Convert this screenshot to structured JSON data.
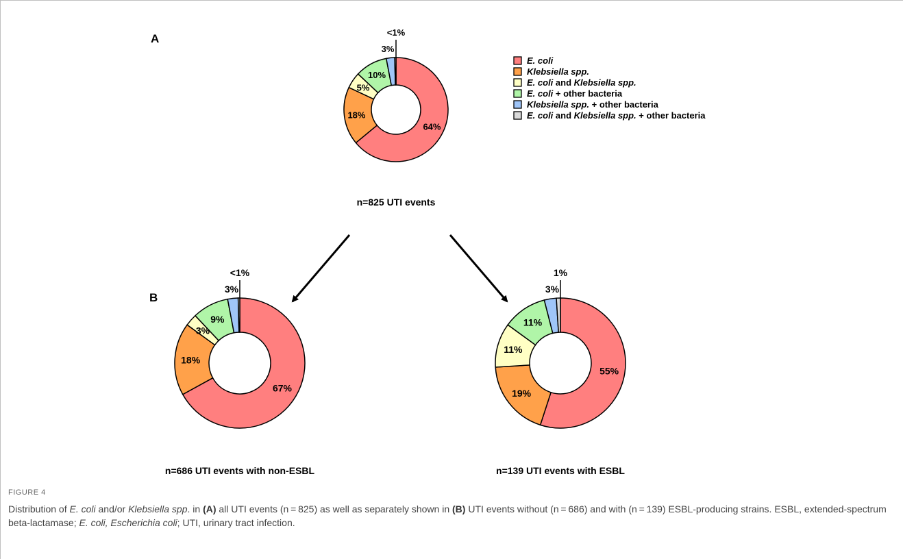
{
  "colors": {
    "ecoli": "#ff7f7f",
    "klebsiella": "#ffa14a",
    "ecoli_klebsiella": "#ffffc4",
    "ecoli_other": "#b0f5a8",
    "klebsiella_other": "#9fc5f8",
    "ecoli_klebsiella_other": "#d9d9d9"
  },
  "legend": [
    {
      "key": "ecoli",
      "parts": [
        {
          "t": "E. coli",
          "i": true
        }
      ]
    },
    {
      "key": "klebsiella",
      "parts": [
        {
          "t": "Klebsiella spp.",
          "i": true
        }
      ]
    },
    {
      "key": "ecoli_klebsiella",
      "parts": [
        {
          "t": "E. coli",
          "i": true
        },
        {
          "t": " and ",
          "i": false
        },
        {
          "t": "Klebsiella spp.",
          "i": true
        }
      ]
    },
    {
      "key": "ecoli_other",
      "parts": [
        {
          "t": "E. coli",
          "i": true
        },
        {
          "t": " + other bacteria",
          "i": false
        }
      ]
    },
    {
      "key": "klebsiella_other",
      "parts": [
        {
          "t": "Klebsiella spp.",
          "i": true
        },
        {
          "t": " + other bacteria",
          "i": false
        }
      ]
    },
    {
      "key": "ecoli_klebsiella_other",
      "parts": [
        {
          "t": "E. coli",
          "i": true
        },
        {
          "t": " and ",
          "i": false
        },
        {
          "t": "Klebsiella spp.",
          "i": true
        },
        {
          "t": " + other bacteria",
          "i": false
        }
      ]
    }
  ],
  "chart_data": [
    {
      "type": "pie",
      "panel": "A",
      "caption": "n=825 UTI events",
      "slices": [
        {
          "key": "ecoli",
          "value": 64,
          "label": "64%"
        },
        {
          "key": "klebsiella",
          "value": 18,
          "label": "18%"
        },
        {
          "key": "ecoli_klebsiella",
          "value": 5,
          "label": "5%"
        },
        {
          "key": "ecoli_other",
          "value": 10,
          "label": "10%"
        },
        {
          "key": "klebsiella_other",
          "value": 2.6,
          "label": "3%"
        },
        {
          "key": "ecoli_klebsiella_other",
          "value": 0.4,
          "label": "<1%"
        }
      ]
    },
    {
      "type": "pie",
      "panel": "B",
      "caption": "n=686 UTI events with non-ESBL",
      "slices": [
        {
          "key": "ecoli",
          "value": 67,
          "label": "67%"
        },
        {
          "key": "klebsiella",
          "value": 18,
          "label": "18%"
        },
        {
          "key": "ecoli_klebsiella",
          "value": 3,
          "label": "3%"
        },
        {
          "key": "ecoli_other",
          "value": 9,
          "label": "9%"
        },
        {
          "key": "klebsiella_other",
          "value": 2.6,
          "label": "3%"
        },
        {
          "key": "ecoli_klebsiella_other",
          "value": 0.4,
          "label": "<1%"
        }
      ]
    },
    {
      "type": "pie",
      "panel": "",
      "caption": "n=139 UTI events with ESBL",
      "slices": [
        {
          "key": "ecoli",
          "value": 55,
          "label": "55%"
        },
        {
          "key": "klebsiella",
          "value": 19,
          "label": "19%"
        },
        {
          "key": "ecoli_klebsiella",
          "value": 11,
          "label": "11%"
        },
        {
          "key": "ecoli_other",
          "value": 11,
          "label": "11%"
        },
        {
          "key": "klebsiella_other",
          "value": 3,
          "label": "3%"
        },
        {
          "key": "ecoli_klebsiella_other",
          "value": 1,
          "label": "1%"
        }
      ]
    }
  ],
  "figure_label": "FIGURE 4",
  "figure_caption": [
    {
      "t": "Distribution of ",
      "s": "n"
    },
    {
      "t": "E. coli",
      "s": "i"
    },
    {
      "t": " and/or ",
      "s": "n"
    },
    {
      "t": "Klebsiella spp",
      "s": "i"
    },
    {
      "t": ". in ",
      "s": "n"
    },
    {
      "t": "(A)",
      "s": "b"
    },
    {
      "t": " all UTI events (n = 825) as well as separately shown in ",
      "s": "n"
    },
    {
      "t": "(B)",
      "s": "b"
    },
    {
      "t": " UTI events without (n = 686) and with (n = 139) ESBL-producing strains. ESBL, extended-spectrum beta-lactamase; ",
      "s": "n"
    },
    {
      "t": "E. coli, Escherichia coli",
      "s": "i"
    },
    {
      "t": "; UTI, urinary tract infection.",
      "s": "n"
    }
  ]
}
